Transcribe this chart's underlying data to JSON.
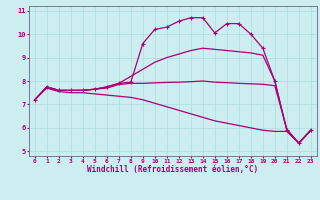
{
  "xlabel": "Windchill (Refroidissement éolien,°C)",
  "xlim": [
    -0.5,
    23.5
  ],
  "ylim": [
    4.8,
    11.2
  ],
  "yticks": [
    5,
    6,
    7,
    8,
    9,
    10,
    11
  ],
  "xticks": [
    0,
    1,
    2,
    3,
    4,
    5,
    6,
    7,
    8,
    9,
    10,
    11,
    12,
    13,
    14,
    15,
    16,
    17,
    18,
    19,
    20,
    21,
    22,
    23
  ],
  "bg_color": "#cceef0",
  "grid_color": "#aadde0",
  "line_color": "#aa0077",
  "line1_x": [
    0,
    1,
    2,
    3,
    4,
    5,
    6,
    7,
    8,
    9,
    10,
    11,
    12,
    13,
    14,
    15,
    16,
    17,
    18,
    19,
    20,
    21,
    22,
    23
  ],
  "line1_y": [
    7.2,
    7.75,
    7.6,
    7.6,
    7.6,
    7.65,
    7.75,
    7.9,
    7.95,
    9.6,
    10.2,
    10.3,
    10.55,
    10.7,
    10.7,
    10.05,
    10.45,
    10.45,
    10.0,
    9.4,
    8.0,
    5.9,
    5.35,
    5.9
  ],
  "line2_x": [
    0,
    1,
    2,
    3,
    4,
    5,
    6,
    7,
    8,
    9,
    10,
    11,
    12,
    13,
    14,
    15,
    16,
    17,
    18,
    19,
    20,
    21,
    22,
    23
  ],
  "line2_y": [
    7.2,
    7.75,
    7.6,
    7.6,
    7.6,
    7.65,
    7.75,
    7.9,
    8.2,
    8.5,
    8.8,
    9.0,
    9.15,
    9.3,
    9.4,
    9.35,
    9.3,
    9.25,
    9.2,
    9.1,
    8.0,
    5.9,
    5.35,
    5.9
  ],
  "line3_x": [
    0,
    1,
    2,
    3,
    4,
    5,
    6,
    7,
    8,
    9,
    10,
    11,
    12,
    13,
    14,
    15,
    16,
    17,
    18,
    19,
    20,
    21,
    22,
    23
  ],
  "line3_y": [
    7.2,
    7.75,
    7.6,
    7.6,
    7.6,
    7.65,
    7.7,
    7.85,
    7.9,
    7.9,
    7.92,
    7.94,
    7.95,
    7.97,
    8.0,
    7.95,
    7.93,
    7.9,
    7.88,
    7.86,
    7.8,
    5.95,
    5.35,
    5.9
  ],
  "line4_x": [
    0,
    1,
    2,
    3,
    4,
    5,
    6,
    7,
    8,
    9,
    10,
    11,
    12,
    13,
    14,
    15,
    16,
    17,
    18,
    19,
    20,
    21,
    22,
    23
  ],
  "line4_y": [
    7.2,
    7.7,
    7.55,
    7.5,
    7.5,
    7.45,
    7.4,
    7.35,
    7.3,
    7.2,
    7.05,
    6.9,
    6.75,
    6.6,
    6.45,
    6.3,
    6.2,
    6.1,
    6.0,
    5.9,
    5.85,
    5.85,
    5.35,
    5.9
  ]
}
